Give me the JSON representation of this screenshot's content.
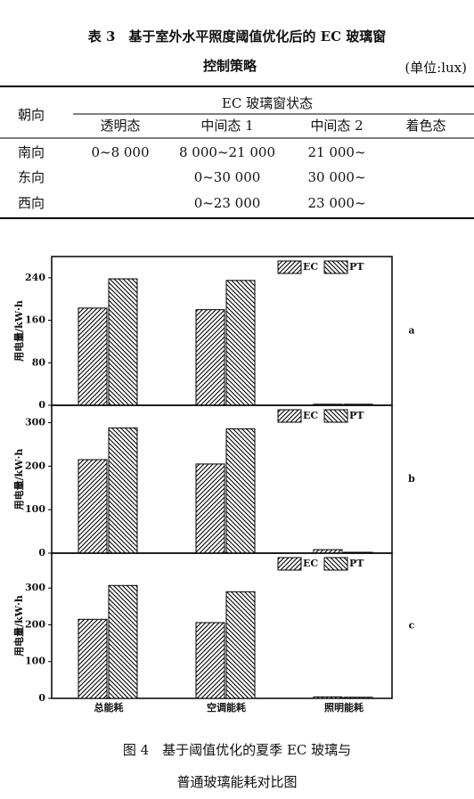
{
  "table": {
    "title": [
      "表 3　基于室外水平照度阈值优化后的 EC 玻璃窗",
      "控制策略"
    ],
    "unit": "(单位:lux)",
    "header": {
      "orientation": "朝向",
      "group": "EC 玻璃窗状态",
      "states": [
        "透明态",
        "中间态 1",
        "中间态 2",
        "着色态"
      ]
    },
    "rows": [
      [
        "南向",
        "0~8 000",
        "8 000~21 000",
        "21 000~",
        null
      ],
      [
        "东向",
        null,
        "0~30 000",
        "30 000~",
        null
      ],
      [
        "西向",
        null,
        "0~23 000",
        "23 000~",
        null
      ]
    ]
  },
  "chart_data": [
    {
      "type": "bar",
      "label": "a",
      "y_label": "用电量/kW·h",
      "ylim": [
        0,
        280
      ],
      "yticks": [
        0,
        80,
        160,
        240
      ],
      "legend": "upper right",
      "series": [
        {
          "name": "EC",
          "color": "#000000",
          "hatch": "/",
          "values": [
            183,
            180,
            2
          ]
        },
        {
          "name": "PT",
          "color": "#000000",
          "hatch": "\\",
          "values": [
            238,
            235,
            2
          ]
        }
      ]
    },
    {
      "type": "bar",
      "label": "b",
      "y_label": "用电量/kW·h",
      "ylim": [
        0,
        340
      ],
      "yticks": [
        0,
        100,
        200,
        300
      ],
      "legend": "upper right",
      "series": [
        {
          "name": "EC",
          "color": "#000000",
          "hatch": "/",
          "values": [
            215,
            205,
            8
          ]
        },
        {
          "name": "PT",
          "color": "#000000",
          "hatch": "\\",
          "values": [
            288,
            286,
            2
          ]
        }
      ]
    },
    {
      "type": "bar",
      "label": "c",
      "y_label": "用电量/kW·h",
      "ylim": [
        0,
        395
      ],
      "yticks": [
        0,
        100,
        200,
        300
      ],
      "legend": "upper right",
      "categories": [
        "总能耗",
        "空调能耗",
        "照明能耗"
      ],
      "series": [
        {
          "name": "EC",
          "color": "#000000",
          "hatch": "/",
          "values": [
            215,
            206,
            4
          ]
        },
        {
          "name": "PT",
          "color": "#000000",
          "hatch": "\\",
          "values": [
            307,
            290,
            3
          ]
        }
      ]
    }
  ],
  "caption": [
    "图 4　基于阈值优化的夏季 EC 玻璃与",
    "普通玻璃能耗对比图"
  ]
}
